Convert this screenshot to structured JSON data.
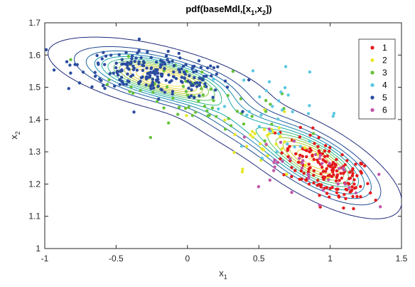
{
  "chart_data": {
    "type": "scatter",
    "title": "pdf(baseMdl,[x_1,x_2])",
    "title_parts": [
      "pdf(baseMdl,[x",
      "1",
      ",x",
      "2",
      "])"
    ],
    "xlabel": "x",
    "xlabel_sub": "1",
    "ylabel": "x",
    "ylabel_sub": "2",
    "xlim": [
      -1,
      1.5
    ],
    "ylim": [
      1,
      1.7
    ],
    "xticks": [
      -1,
      -0.5,
      0,
      0.5,
      1,
      1.5
    ],
    "xtick_labels": [
      "-1",
      "-0.5",
      "0",
      "0.5",
      "1",
      "1.5"
    ],
    "yticks": [
      1,
      1.1,
      1.2,
      1.3,
      1.4,
      1.5,
      1.6,
      1.7
    ],
    "ytick_labels": [
      "1",
      "1.1",
      "1.2",
      "1.3",
      "1.4",
      "1.5",
      "1.6",
      "1.7"
    ],
    "grid": false,
    "legend_position": "top-right",
    "series": [
      {
        "name": "1",
        "color": "#e41a1c",
        "cx": 0.98,
        "cy": 1.24,
        "sx": 0.16,
        "sy": 0.055,
        "rho": -0.55,
        "n": 170
      },
      {
        "name": "2",
        "color": "#e8e82a",
        "cx": 0.55,
        "cy": 1.33,
        "sx": 0.16,
        "sy": 0.045,
        "rho": -0.2,
        "n": 35
      },
      {
        "name": "3",
        "color": "#66c23a",
        "cx": 0.05,
        "cy": 1.47,
        "sx": 0.3,
        "sy": 0.06,
        "rho": -0.6,
        "n": 70
      },
      {
        "name": "4",
        "color": "#5cc8e0",
        "cx": 0.62,
        "cy": 1.43,
        "sx": 0.25,
        "sy": 0.06,
        "rho": -0.2,
        "n": 35
      },
      {
        "name": "5",
        "color": "#2b4da0",
        "cx": -0.22,
        "cy": 1.54,
        "sx": 0.27,
        "sy": 0.035,
        "rho": -0.45,
        "n": 220
      },
      {
        "name": "6",
        "color": "#c055a8",
        "cx": 0.78,
        "cy": 1.25,
        "sx": 0.24,
        "sy": 0.05,
        "rho": -0.35,
        "n": 40
      }
    ],
    "contour": {
      "components": [
        {
          "w": 0.45,
          "mx": -0.2,
          "my": 1.53,
          "sx": 0.28,
          "sy": 0.045,
          "rho": -0.6
        },
        {
          "w": 0.4,
          "mx": 0.9,
          "my": 1.27,
          "sx": 0.22,
          "sy": 0.065,
          "rho": -0.7
        },
        {
          "w": 0.15,
          "mx": 0.35,
          "my": 1.4,
          "sx": 0.3,
          "sy": 0.08,
          "rho": -0.85
        }
      ],
      "level_count": 12,
      "colormap": [
        "#1f2a7a",
        "#21468f",
        "#1d64a4",
        "#1888b0",
        "#18a4a8",
        "#2fb88a",
        "#5cc263",
        "#8cc640",
        "#b8c82a",
        "#d8c52a",
        "#ead83a",
        "#f2e44e"
      ]
    }
  }
}
